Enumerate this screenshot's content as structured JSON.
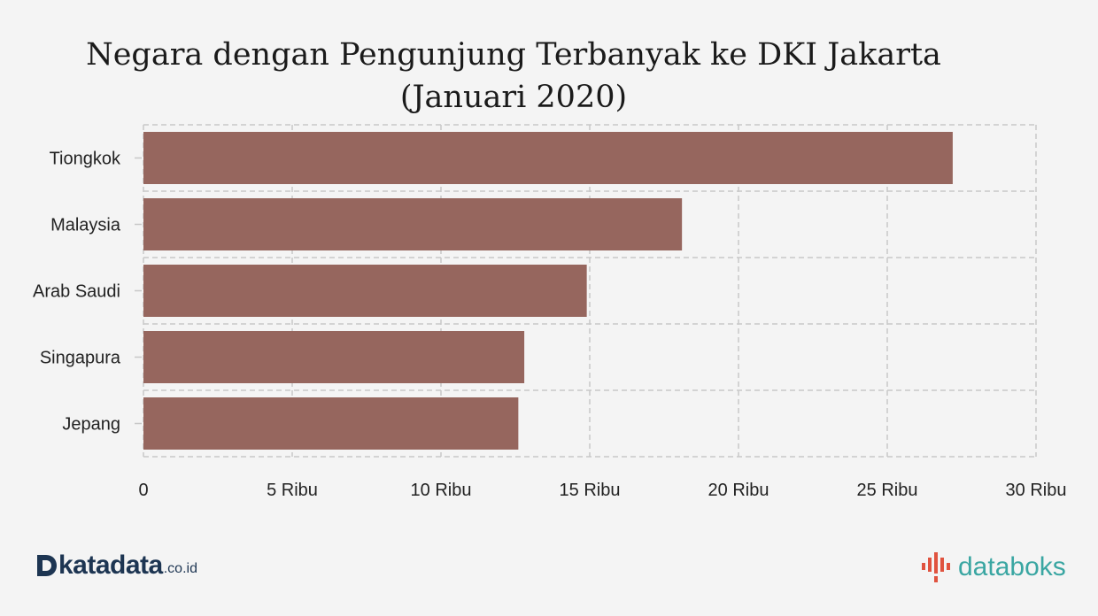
{
  "chart_data": {
    "type": "bar",
    "orientation": "horizontal",
    "title": "Negara dengan Pengunjung Terbanyak ke DKI Jakarta (Januari 2020)",
    "categories": [
      "Tiongkok",
      "Malaysia",
      "Arab Saudi",
      "Singapura",
      "Jepang"
    ],
    "values": [
      27.2,
      18.1,
      14.9,
      12.8,
      12.6
    ],
    "xlim": [
      0,
      30
    ],
    "x_ticks": [
      0,
      5,
      10,
      15,
      20,
      25,
      30
    ],
    "x_tick_labels": [
      "0",
      "5 Ribu",
      "10 Ribu",
      "15 Ribu",
      "20 Ribu",
      "25 Ribu",
      "30 Ribu"
    ],
    "xlabel": "",
    "ylabel": "",
    "grid": true,
    "bar_color": "#96665e"
  },
  "branding": {
    "left_logo_text": "katadata",
    "left_logo_domain": ".co.id",
    "right_logo_text": "databoks",
    "left_logo_color": "#1d3552",
    "right_logo_color": "#3aa6a2",
    "right_logo_mark_color": "#e0533f"
  }
}
